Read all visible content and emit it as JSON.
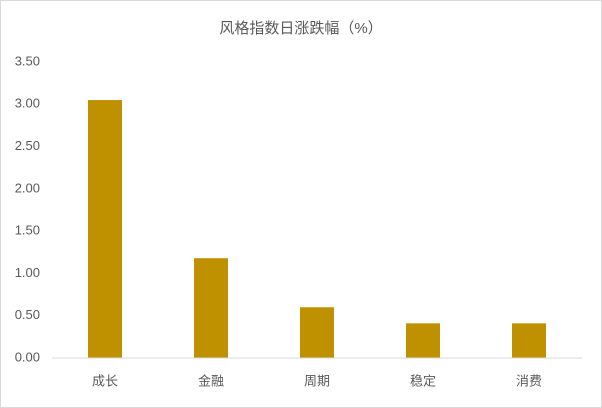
{
  "chart_data": {
    "type": "bar",
    "title": "风格指数日涨跌幅（%）",
    "categories": [
      "成长",
      "金融",
      "周期",
      "稳定",
      "消费"
    ],
    "values": [
      3.05,
      1.18,
      0.6,
      0.41,
      0.41
    ],
    "color": "#bf9000",
    "ylim": [
      0,
      3.5
    ],
    "yticks": [
      {
        "value": 0,
        "label": "0.00"
      },
      {
        "value": 0.5,
        "label": "0.50"
      },
      {
        "value": 1,
        "label": "1.00"
      },
      {
        "value": 1.5,
        "label": "1.50"
      },
      {
        "value": 2,
        "label": "2.00"
      },
      {
        "value": 2.5,
        "label": "2.50"
      },
      {
        "value": 3,
        "label": "3.00"
      },
      {
        "value": 3.5,
        "label": "3.50"
      }
    ],
    "grid": false
  }
}
